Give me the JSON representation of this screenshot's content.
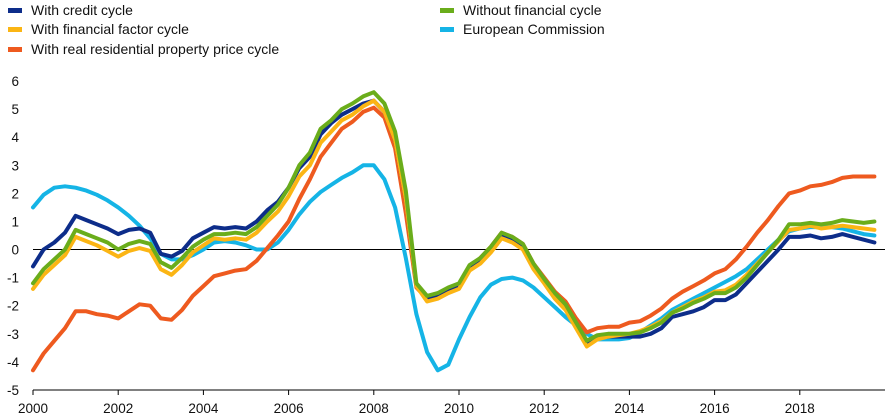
{
  "chart_data": {
    "type": "line",
    "title": "",
    "xlabel": "",
    "ylabel": "",
    "xlim": [
      2000.0,
      2020.0
    ],
    "ylim": [
      -5,
      6
    ],
    "y_ticks": [
      -5,
      -4,
      -3,
      -2,
      -1,
      0,
      1,
      2,
      3,
      4,
      5,
      6
    ],
    "x_ticks": [
      2000,
      2002,
      2004,
      2006,
      2008,
      2010,
      2012,
      2014,
      2016,
      2018
    ],
    "x_tick_labels": [
      "2000",
      "2002",
      "2004",
      "2006",
      "2008",
      "2010",
      "2012",
      "2014",
      "2016",
      "2018"
    ],
    "zero_line": true,
    "grid": false,
    "legend_position": "top",
    "x": [
      2000.0,
      2000.25,
      2000.5,
      2000.75,
      2001.0,
      2001.25,
      2001.5,
      2001.75,
      2002.0,
      2002.25,
      2002.5,
      2002.75,
      2003.0,
      2003.25,
      2003.5,
      2003.75,
      2004.0,
      2004.25,
      2004.5,
      2004.75,
      2005.0,
      2005.25,
      2005.5,
      2005.75,
      2006.0,
      2006.25,
      2006.5,
      2006.75,
      2007.0,
      2007.25,
      2007.5,
      2007.75,
      2008.0,
      2008.25,
      2008.5,
      2008.75,
      2009.0,
      2009.25,
      2009.5,
      2009.75,
      2010.0,
      2010.25,
      2010.5,
      2010.75,
      2011.0,
      2011.25,
      2011.5,
      2011.75,
      2012.0,
      2012.25,
      2012.5,
      2012.75,
      2013.0,
      2013.25,
      2013.5,
      2013.75,
      2014.0,
      2014.25,
      2014.5,
      2014.75,
      2015.0,
      2015.25,
      2015.5,
      2015.75,
      2016.0,
      2016.25,
      2016.5,
      2016.75,
      2017.0,
      2017.25,
      2017.5,
      2017.75,
      2018.0,
      2018.25,
      2018.5,
      2018.75,
      2019.0,
      2019.25,
      2019.5,
      2019.75
    ],
    "series": [
      {
        "name": "With credit cycle",
        "color": "#0d2d8a",
        "values": [
          -0.6,
          0.0,
          0.25,
          0.6,
          1.2,
          1.05,
          0.9,
          0.75,
          0.55,
          0.7,
          0.75,
          0.6,
          -0.15,
          -0.25,
          -0.05,
          0.4,
          0.6,
          0.8,
          0.75,
          0.8,
          0.75,
          1.0,
          1.4,
          1.7,
          2.2,
          2.9,
          3.3,
          4.1,
          4.5,
          4.8,
          5.0,
          5.2,
          5.3,
          4.9,
          3.9,
          1.8,
          -1.3,
          -1.75,
          -1.65,
          -1.4,
          -1.25,
          -0.6,
          -0.35,
          0.05,
          0.55,
          0.4,
          0.15,
          -0.6,
          -1.1,
          -1.6,
          -2.0,
          -2.7,
          -3.35,
          -3.15,
          -3.1,
          -3.1,
          -3.1,
          -3.1,
          -3.0,
          -2.8,
          -2.4,
          -2.3,
          -2.2,
          -2.05,
          -1.8,
          -1.8,
          -1.6,
          -1.2,
          -0.8,
          -0.4,
          0.0,
          0.45,
          0.45,
          0.5,
          0.4,
          0.45,
          0.55,
          0.45,
          0.35,
          0.25
        ]
      },
      {
        "name": "With financial factor cycle",
        "color": "#fbb514",
        "values": [
          -1.4,
          -0.9,
          -0.55,
          -0.2,
          0.45,
          0.3,
          0.15,
          -0.05,
          -0.25,
          -0.05,
          0.05,
          -0.05,
          -0.7,
          -0.9,
          -0.55,
          -0.1,
          0.15,
          0.4,
          0.35,
          0.4,
          0.35,
          0.6,
          1.0,
          1.35,
          1.9,
          2.6,
          3.0,
          3.8,
          4.2,
          4.6,
          4.8,
          5.1,
          5.3,
          4.9,
          3.9,
          1.8,
          -1.3,
          -1.85,
          -1.75,
          -1.55,
          -1.4,
          -0.75,
          -0.5,
          -0.1,
          0.4,
          0.25,
          0.0,
          -0.7,
          -1.2,
          -1.75,
          -2.15,
          -2.8,
          -3.45,
          -3.2,
          -3.1,
          -3.05,
          -3.0,
          -2.9,
          -2.75,
          -2.55,
          -2.25,
          -2.05,
          -1.85,
          -1.7,
          -1.5,
          -1.45,
          -1.25,
          -0.9,
          -0.5,
          -0.1,
          0.3,
          0.7,
          0.75,
          0.85,
          0.75,
          0.8,
          0.85,
          0.8,
          0.75,
          0.7
        ]
      },
      {
        "name": "With real residential property price cycle",
        "color": "#ee5a1f",
        "values": [
          -4.3,
          -3.7,
          -3.25,
          -2.8,
          -2.2,
          -2.2,
          -2.3,
          -2.35,
          -2.45,
          -2.2,
          -1.95,
          -2.0,
          -2.45,
          -2.5,
          -2.15,
          -1.65,
          -1.3,
          -0.95,
          -0.85,
          -0.75,
          -0.7,
          -0.4,
          0.05,
          0.5,
          1.0,
          1.8,
          2.5,
          3.3,
          3.8,
          4.3,
          4.55,
          4.9,
          5.05,
          4.7,
          3.6,
          1.3,
          -1.35,
          -1.75,
          -1.6,
          -1.4,
          -1.3,
          -0.65,
          -0.3,
          0.1,
          0.6,
          0.45,
          0.2,
          -0.5,
          -1.0,
          -1.5,
          -1.85,
          -2.45,
          -2.95,
          -2.8,
          -2.75,
          -2.75,
          -2.6,
          -2.55,
          -2.35,
          -2.1,
          -1.75,
          -1.5,
          -1.3,
          -1.1,
          -0.85,
          -0.7,
          -0.35,
          0.1,
          0.6,
          1.05,
          1.55,
          2.0,
          2.1,
          2.25,
          2.3,
          2.4,
          2.55,
          2.6,
          2.6,
          2.6
        ]
      },
      {
        "name": "Without financial cycle",
        "color": "#6aad1b",
        "values": [
          -1.2,
          -0.7,
          -0.35,
          0.0,
          0.7,
          0.55,
          0.4,
          0.25,
          0.0,
          0.2,
          0.3,
          0.2,
          -0.45,
          -0.65,
          -0.3,
          0.1,
          0.35,
          0.55,
          0.55,
          0.6,
          0.55,
          0.8,
          1.2,
          1.6,
          2.2,
          3.0,
          3.45,
          4.3,
          4.6,
          5.0,
          5.2,
          5.45,
          5.6,
          5.2,
          4.2,
          2.1,
          -1.2,
          -1.65,
          -1.55,
          -1.35,
          -1.2,
          -0.55,
          -0.3,
          0.1,
          0.6,
          0.45,
          0.2,
          -0.5,
          -1.05,
          -1.55,
          -1.95,
          -2.6,
          -3.25,
          -3.05,
          -3.0,
          -3.0,
          -3.0,
          -2.95,
          -2.8,
          -2.6,
          -2.25,
          -2.1,
          -1.9,
          -1.75,
          -1.55,
          -1.55,
          -1.35,
          -1.0,
          -0.55,
          -0.1,
          0.35,
          0.9,
          0.9,
          0.95,
          0.9,
          0.95,
          1.05,
          1.0,
          0.95,
          1.0
        ]
      },
      {
        "name": "European Commission",
        "color": "#15b4e6",
        "values": [
          1.5,
          1.95,
          2.2,
          2.25,
          2.2,
          2.1,
          1.95,
          1.75,
          1.5,
          1.2,
          0.85,
          0.4,
          -0.15,
          -0.35,
          -0.35,
          -0.2,
          0.0,
          0.25,
          0.3,
          0.25,
          0.15,
          0.0,
          0.0,
          0.25,
          0.7,
          1.25,
          1.7,
          2.05,
          2.3,
          2.55,
          2.75,
          3.0,
          3.0,
          2.5,
          1.5,
          -0.3,
          -2.3,
          -3.65,
          -4.3,
          -4.1,
          -3.2,
          -2.4,
          -1.7,
          -1.25,
          -1.05,
          -1.0,
          -1.1,
          -1.35,
          -1.7,
          -2.05,
          -2.4,
          -2.7,
          -3.0,
          -3.2,
          -3.2,
          -3.2,
          -3.15,
          -2.95,
          -2.7,
          -2.45,
          -2.15,
          -1.95,
          -1.75,
          -1.55,
          -1.35,
          -1.15,
          -0.95,
          -0.7,
          -0.35,
          0.0,
          0.35,
          0.65,
          0.75,
          0.8,
          0.8,
          0.8,
          0.75,
          0.65,
          0.55,
          0.5
        ]
      }
    ],
    "legend_entries": [
      "With credit cycle",
      "With financial factor cycle",
      "With real residential property price cycle",
      "Without financial cycle",
      "European Commission"
    ]
  }
}
